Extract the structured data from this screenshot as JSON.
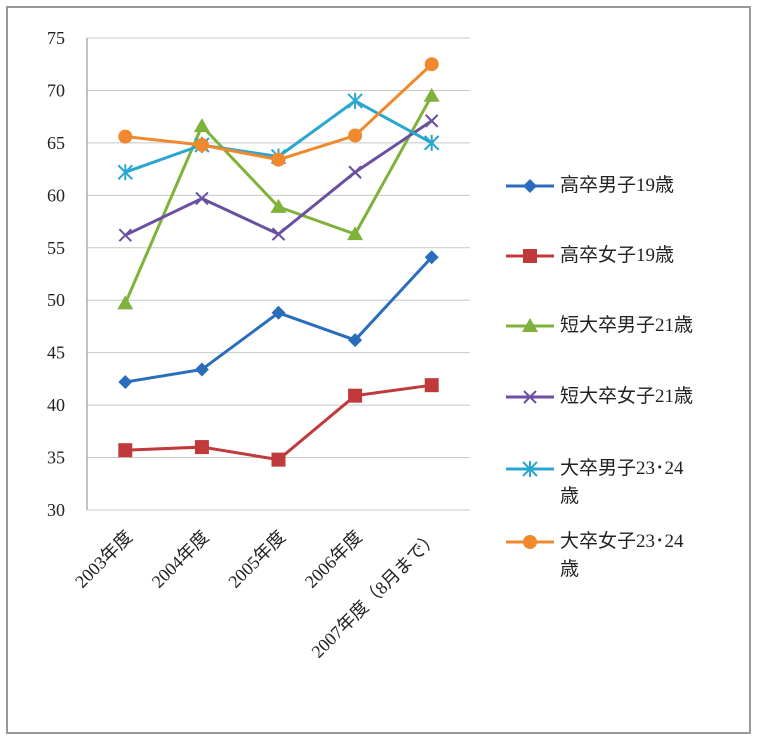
{
  "chart_data": {
    "type": "line",
    "categories": [
      "2003年度",
      "2004年度",
      "2005年度",
      "2006年度",
      "2007年度（8月まで）"
    ],
    "ylim": [
      30,
      75
    ],
    "yticks": [
      30,
      35,
      40,
      45,
      50,
      55,
      60,
      65,
      70,
      75
    ],
    "grid": true,
    "series": [
      {
        "name": "高卒男子19歳",
        "color": "#2a6ebb",
        "marker": "diamond",
        "values": [
          42.2,
          43.4,
          48.8,
          46.2,
          54.1
        ]
      },
      {
        "name": "高卒女子19歳",
        "color": "#c0393b",
        "marker": "square",
        "values": [
          35.7,
          36.0,
          34.8,
          40.9,
          41.9
        ]
      },
      {
        "name": "短大卒男子21歳",
        "color": "#7fb23a",
        "marker": "triangle",
        "values": [
          49.7,
          66.6,
          58.9,
          56.3,
          69.5
        ]
      },
      {
        "name": "短大卒女子21歳",
        "color": "#6b4fa0",
        "marker": "x",
        "values": [
          56.2,
          59.7,
          56.3,
          62.2,
          67.1
        ]
      },
      {
        "name": "大卒男子23･24歳",
        "color": "#2aa7cf",
        "marker": "star",
        "values": [
          62.2,
          64.8,
          63.7,
          69.0,
          65.0
        ]
      },
      {
        "name": "大卒女子23･24歳",
        "color": "#f0892e",
        "marker": "circle",
        "values": [
          65.6,
          64.8,
          63.4,
          65.7,
          72.5
        ]
      }
    ]
  }
}
